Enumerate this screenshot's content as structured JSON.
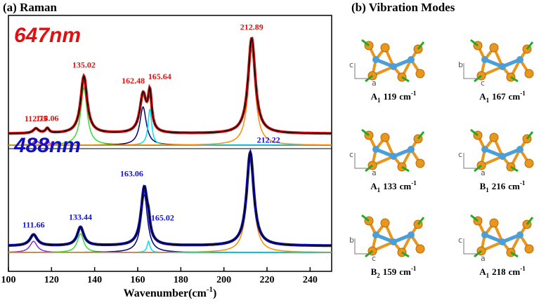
{
  "chart_data": {
    "type": "line",
    "title": "(a) Raman",
    "x_label": "Wavenumber(cm",
    "x_label_sup": "-1",
    "x_label_end": ")",
    "xlim": [
      100,
      250
    ],
    "xticks": [
      100,
      120,
      140,
      160,
      180,
      200,
      220,
      240
    ],
    "panels": [
      {
        "name": "647nm",
        "color": "#e01010",
        "label_color": "#e01010",
        "fit_color": "#000000",
        "ylim": [
          0,
          1.3
        ],
        "baseline": 0.12,
        "components": [
          {
            "center": 112.75,
            "amplitude": 0.05,
            "width": 1.5,
            "color": "#8a2be2"
          },
          {
            "center": 118.06,
            "amplitude": 0.05,
            "width": 1.0,
            "color": "#ff00ff"
          },
          {
            "center": 135.02,
            "amplitude": 0.6,
            "width": 1.8,
            "color": "#33dd33"
          },
          {
            "center": 162.48,
            "amplitude": 0.4,
            "width": 1.8,
            "color": "#000080"
          },
          {
            "center": 165.64,
            "amplitude": 0.38,
            "width": 1.0,
            "color": "#00e5ee"
          },
          {
            "center": 212.89,
            "amplitude": 1.0,
            "width": 2.0,
            "color": "#ff8c00"
          }
        ]
      },
      {
        "name": "488nm",
        "color": "#1010c0",
        "label_color": "#1010e0",
        "fit_color": "#000000",
        "ylim": [
          0,
          1.3
        ],
        "baseline": 0.07,
        "components": [
          {
            "center": 111.66,
            "amplitude": 0.12,
            "width": 2.0,
            "color": "#8a2be2"
          },
          {
            "center": 133.44,
            "amplitude": 0.2,
            "width": 1.8,
            "color": "#33dd33"
          },
          {
            "center": 163.06,
            "amplitude": 0.62,
            "width": 1.8,
            "color": "#000080"
          },
          {
            "center": 165.02,
            "amplitude": 0.12,
            "width": 0.8,
            "color": "#00e5ee"
          },
          {
            "center": 212.22,
            "amplitude": 1.0,
            "width": 2.0,
            "color": "#ff8c00"
          }
        ]
      }
    ]
  },
  "modes_panel": {
    "title": "(b) Vibration Modes",
    "modes": [
      {
        "symbol": "A",
        "sub": "1",
        "freq": 119,
        "unit": "cm",
        "sup": "-1",
        "axes": [
          "c",
          "a"
        ]
      },
      {
        "symbol": "A",
        "sub": "1",
        "freq": 167,
        "unit": "cm",
        "sup": "-1",
        "axes": [
          "b",
          "c"
        ]
      },
      {
        "symbol": "A",
        "sub": "1",
        "freq": 133,
        "unit": "cm",
        "sup": "-1",
        "axes": [
          "c",
          "a"
        ]
      },
      {
        "symbol": "B",
        "sub": "1",
        "freq": 216,
        "unit": "cm",
        "sup": "-1",
        "axes": [
          "c",
          "a"
        ]
      },
      {
        "symbol": "B",
        "sub": "2",
        "freq": 159,
        "unit": "cm",
        "sup": "-1",
        "axes": [
          "b",
          "c"
        ]
      },
      {
        "symbol": "A",
        "sub": "1",
        "freq": 218,
        "unit": "cm",
        "sup": "-1",
        "axes": [
          "c",
          "a"
        ]
      }
    ]
  }
}
